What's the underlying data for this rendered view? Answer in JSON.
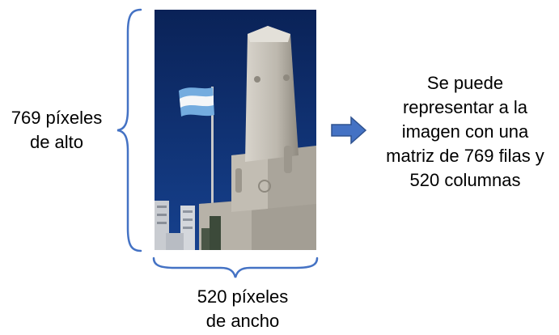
{
  "height_label": {
    "line1": "769 píxeles",
    "line2": "de alto"
  },
  "width_label": {
    "line1": "520 píxeles",
    "line2": "de ancho"
  },
  "description": {
    "line1": "Se puede",
    "line2": "representar a la",
    "line3": "imagen con una",
    "line4": "matriz de 769 filas y",
    "line5": "520 columnas"
  },
  "colors": {
    "brace": "#4472c4",
    "arrow_fill": "#4472c4",
    "arrow_stroke": "#2f528f",
    "sky": "#0c2a66",
    "monument": "#b5b0a6"
  }
}
